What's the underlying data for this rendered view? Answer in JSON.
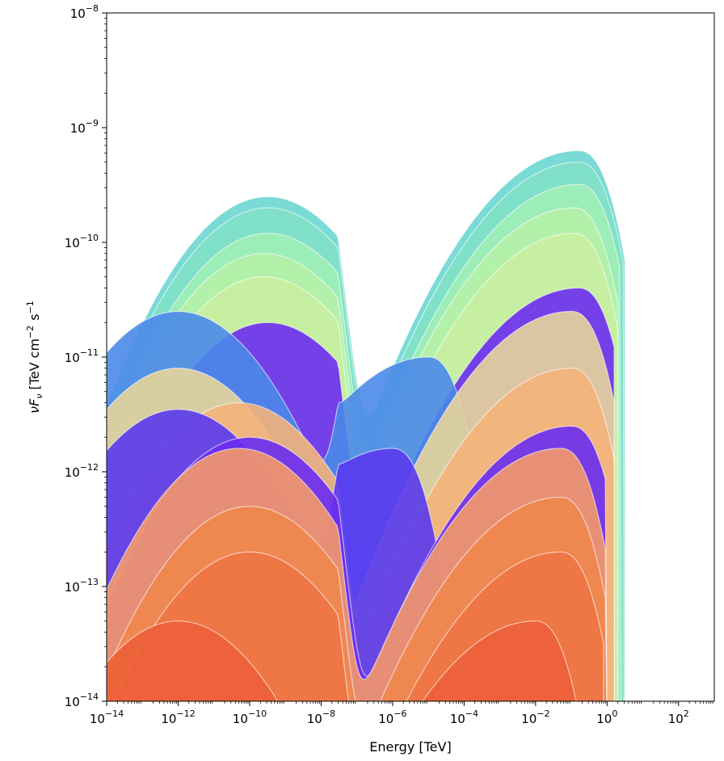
{
  "chart_data": {
    "type": "line",
    "title": "",
    "xlabel": "Energy [TeV]",
    "ylabel": "νF_ν [TeV cm^-2 s^-1]",
    "ylabel_parts": {
      "nu": "ν",
      "F": "F",
      "sub": "ν",
      "unit": "[TeV  cm",
      "exp1": "−2",
      "s": "s",
      "exp2": "−1"
    },
    "x_scale": "log",
    "y_scale": "log",
    "xlim": [
      1e-14,
      1000
    ],
    "ylim": [
      1e-14,
      1e-08
    ],
    "grid": false,
    "legend": "none",
    "xticks": [
      {
        "value": 1e-14,
        "base": "10",
        "exp": "−14"
      },
      {
        "value": 1e-12,
        "base": "10",
        "exp": "−12"
      },
      {
        "value": 1e-10,
        "base": "10",
        "exp": "−10"
      },
      {
        "value": 1e-08,
        "base": "10",
        "exp": "−8"
      },
      {
        "value": 1e-06,
        "base": "10",
        "exp": "−6"
      },
      {
        "value": 0.0001,
        "base": "10",
        "exp": "−4"
      },
      {
        "value": 0.01,
        "base": "10",
        "exp": "−2"
      },
      {
        "value": 1,
        "base": "10",
        "exp": "0"
      },
      {
        "value": 100,
        "base": "10",
        "exp": "2"
      }
    ],
    "yticks": [
      {
        "value": 1e-14,
        "base": "10",
        "exp": "−14"
      },
      {
        "value": 1e-13,
        "base": "10",
        "exp": "−13"
      },
      {
        "value": 1e-12,
        "base": "10",
        "exp": "−12"
      },
      {
        "value": 1e-11,
        "base": "10",
        "exp": "−11"
      },
      {
        "value": 1e-10,
        "base": "10",
        "exp": "−10"
      },
      {
        "value": 1e-09,
        "base": "10",
        "exp": "−9"
      },
      {
        "value": 1e-08,
        "base": "10",
        "exp": "−8"
      }
    ],
    "colormap": "rainbow",
    "colors": {
      "low": "#6a2cf0",
      "mid": "#4aa8e6",
      "high": "#6ad6d2",
      "green": "#a8f0b4",
      "yellow": "#e8e0a0",
      "orange": "#f4a26c",
      "red": "#ee6038"
    },
    "series": [
      {
        "sync_peak_x": 3.2e-10,
        "sync_peak_y": 2.5e-10,
        "ic_peak_x": 0.16,
        "ic_peak_y": 6.3e-10,
        "x_max": 3.2,
        "x_min": 1e-14,
        "color": "#6ad6d2"
      },
      {
        "sync_peak_x": 3.2e-10,
        "sync_peak_y": 2e-10,
        "ic_peak_x": 0.16,
        "ic_peak_y": 5e-10,
        "x_max": 3.0,
        "x_min": 1e-14,
        "color": "#82e0c6"
      },
      {
        "sync_peak_x": 3.2e-10,
        "sync_peak_y": 1.2e-10,
        "ic_peak_x": 0.16,
        "ic_peak_y": 3.2e-10,
        "x_max": 2.5,
        "x_min": 1e-14,
        "color": "#a0eeb6"
      },
      {
        "sync_peak_x": 2.5e-10,
        "sync_peak_y": 8e-11,
        "ic_peak_x": 0.12,
        "ic_peak_y": 2e-10,
        "x_max": 2.0,
        "x_min": 1e-14,
        "color": "#b6f0a8"
      },
      {
        "sync_peak_x": 2.5e-10,
        "sync_peak_y": 5e-11,
        "ic_peak_x": 0.12,
        "ic_peak_y": 1.2e-10,
        "x_max": 2.0,
        "x_min": 1e-14,
        "color": "#c8eea0"
      },
      {
        "sync_peak_x": 3.2e-10,
        "sync_peak_y": 2e-11,
        "ic_peak_x": 0.16,
        "ic_peak_y": 4e-11,
        "x_max": 1.6,
        "x_min": 1e-14,
        "color": "#6a2cf0"
      },
      {
        "sync_peak_x": 1e-12,
        "sync_peak_y": 2.5e-11,
        "ic_peak_x": 1e-05,
        "ic_peak_y": 1e-11,
        "x_max": 2.0,
        "x_min": 1e-14,
        "color": "#4a8ae8"
      },
      {
        "sync_peak_x": 1e-12,
        "sync_peak_y": 8e-12,
        "ic_peak_x": 0.1,
        "ic_peak_y": 2.5e-11,
        "x_max": 1.6,
        "x_min": 1e-14,
        "color": "#e8d49a"
      },
      {
        "sync_peak_x": 5e-11,
        "sync_peak_y": 4e-12,
        "ic_peak_x": 0.1,
        "ic_peak_y": 8e-12,
        "x_max": 1.6,
        "x_min": 1e-14,
        "color": "#f4b27a"
      },
      {
        "sync_peak_x": 1e-12,
        "sync_peak_y": 3.5e-12,
        "ic_peak_x": 1e-06,
        "ic_peak_y": 1.6e-12,
        "x_max": 0.0001,
        "x_min": 1e-14,
        "color": "#5a3aee"
      },
      {
        "sync_peak_x": 1e-10,
        "sync_peak_y": 2e-12,
        "ic_peak_x": 0.1,
        "ic_peak_y": 2.5e-12,
        "x_max": 1.0,
        "x_min": 1e-14,
        "color": "#6a2cf0"
      },
      {
        "sync_peak_x": 5e-11,
        "sync_peak_y": 1.6e-12,
        "ic_peak_x": 0.05,
        "ic_peak_y": 1.6e-12,
        "x_max": 1.0,
        "x_min": 1e-14,
        "color": "#f49a68"
      },
      {
        "sync_peak_x": 1e-10,
        "sync_peak_y": 5e-13,
        "ic_peak_x": 0.05,
        "ic_peak_y": 6e-13,
        "x_max": 1.0,
        "x_min": 1e-14,
        "color": "#f0864e"
      },
      {
        "sync_peak_x": 1e-10,
        "sync_peak_y": 2e-13,
        "ic_peak_x": 0.05,
        "ic_peak_y": 2e-13,
        "x_max": 0.8,
        "x_min": 1e-14,
        "color": "#ee7444"
      },
      {
        "sync_peak_x": 1e-12,
        "sync_peak_y": 5e-14,
        "ic_peak_x": 0.01,
        "ic_peak_y": 5e-14,
        "x_max": 0.5,
        "x_min": 1e-14,
        "color": "#ec6038"
      }
    ]
  }
}
